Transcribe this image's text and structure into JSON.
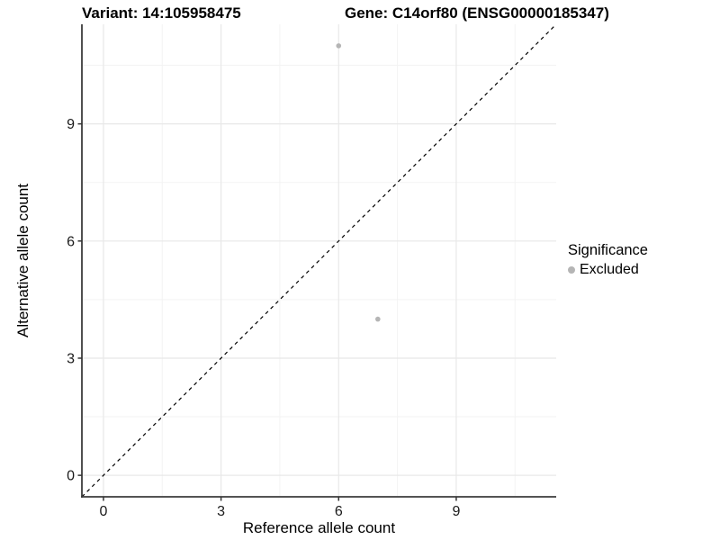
{
  "title": {
    "left": "Variant: 14:105958475",
    "right": "Gene: C14orf80 (ENSG00000185347)"
  },
  "legend": {
    "title": "Significance",
    "items": [
      {
        "label": "Excluded",
        "color": "#b5b5b5"
      }
    ]
  },
  "colors": {
    "background": "#ffffff",
    "grid_major": "#e8e8e8",
    "grid_minor": "#f3f3f3",
    "axis_line": "#3c3c3c",
    "tick_mark": "#333333",
    "tick_text": "#1a1a1a",
    "title_text": "#000000",
    "reference_line": "#000000",
    "point": "#b5b5b5"
  },
  "chart_data": {
    "type": "scatter",
    "title": "Variant: 14:105958475 | Gene: C14orf80 (ENSG00000185347)",
    "xlabel": "Reference allele count",
    "ylabel": "Alternative allele count",
    "xlim": [
      -0.55,
      11.55
    ],
    "ylim": [
      -0.55,
      11.55
    ],
    "xticks": [
      0,
      3,
      6,
      9
    ],
    "yticks": [
      0,
      3,
      6,
      9
    ],
    "x_minor_ticks": [
      1.5,
      4.5,
      7.5,
      10.5
    ],
    "y_minor_ticks": [
      1.5,
      4.5,
      7.5,
      10.5
    ],
    "grid": true,
    "legend_position": "right",
    "series": [
      {
        "name": "Excluded",
        "color": "#b5b5b5",
        "marker_size": 2.8,
        "points": [
          [
            6,
            11
          ],
          [
            7,
            4
          ]
        ]
      }
    ],
    "reference_line": {
      "kind": "identity",
      "x1": -0.55,
      "y1": -0.55,
      "x2": 11.55,
      "y2": 11.55,
      "style": "dashed",
      "dash": "4,4"
    }
  }
}
